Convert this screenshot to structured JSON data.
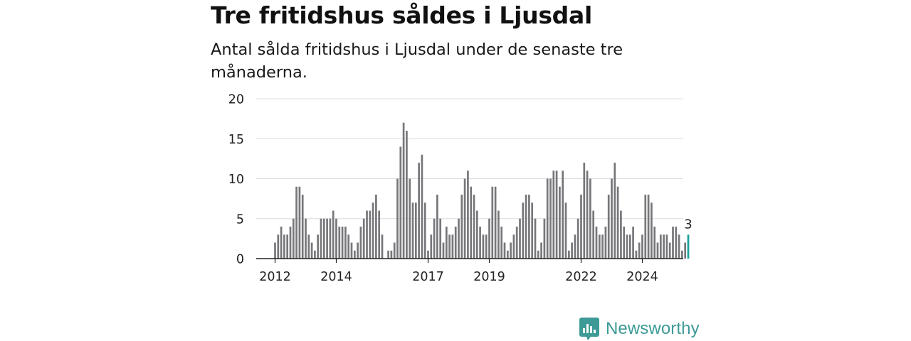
{
  "header": {
    "title": "Tre fritidshus såldes i Ljusdal",
    "subtitle": "Antal sålda fritidshus i Ljusdal under de senaste tre månaderna."
  },
  "brand": {
    "name": "Newsworthy",
    "icon": "newsworthy-logo-icon",
    "color": "#3d9a96"
  },
  "chart_data": {
    "type": "bar",
    "start": "2012-01",
    "frequency": "monthly",
    "ylim": [
      0,
      20
    ],
    "yticks": [
      0,
      5,
      10,
      15,
      20
    ],
    "xticks": [
      {
        "label": "2012",
        "index": 0
      },
      {
        "label": "2014",
        "index": 20
      },
      {
        "label": "2017",
        "index": 50
      },
      {
        "label": "2019",
        "index": 70
      },
      {
        "label": "2022",
        "index": 100
      },
      {
        "label": "2024",
        "index": 120
      }
    ],
    "values": [
      2,
      3,
      4,
      3,
      3,
      4,
      5,
      9,
      9,
      8,
      5,
      3,
      2,
      1,
      3,
      5,
      5,
      5,
      5,
      6,
      5,
      4,
      4,
      4,
      3,
      2,
      1,
      2,
      4,
      5,
      6,
      6,
      7,
      8,
      6,
      3,
      0,
      1,
      1,
      2,
      10,
      14,
      17,
      16,
      10,
      7,
      7,
      12,
      13,
      7,
      1,
      3,
      5,
      8,
      5,
      2,
      4,
      3,
      3,
      4,
      5,
      8,
      10,
      11,
      9,
      8,
      6,
      4,
      3,
      3,
      5,
      9,
      9,
      6,
      4,
      2,
      1,
      2,
      3,
      4,
      5,
      7,
      8,
      8,
      7,
      5,
      1,
      2,
      5,
      10,
      10,
      11,
      11,
      9,
      11,
      7,
      1,
      2,
      3,
      5,
      8,
      12,
      11,
      10,
      6,
      4,
      3,
      3,
      4,
      8,
      10,
      12,
      9,
      6,
      4,
      3,
      3,
      4,
      1,
      2,
      3,
      8,
      8,
      7,
      4,
      2,
      3,
      3,
      3,
      2,
      4,
      4,
      3,
      1,
      2,
      3
    ],
    "bar_color": "#77777b",
    "highlight_color": "#1a9f9a",
    "highlight_index": 135,
    "annotation": "3",
    "grid": true
  }
}
